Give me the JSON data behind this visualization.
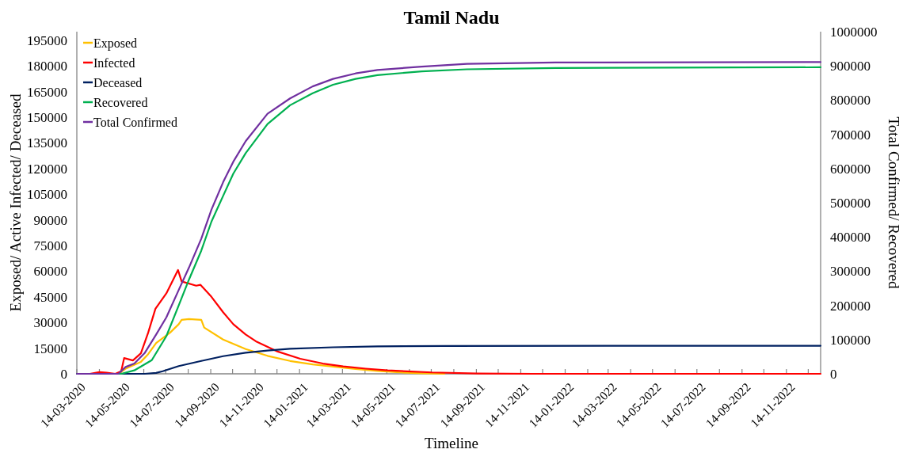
{
  "chart_data": {
    "type": "line",
    "title": "Tamil Nadu",
    "xlabel": "Timeline",
    "ylabel": "Exposed/ Active Infected/ Deceased",
    "y2label": "Total Confirmed/ Recovered",
    "xlim": [
      "2020-03-14",
      "2022-12-31"
    ],
    "xticks": [
      {
        "value": "2020-03-14",
        "label": "14-03-2020"
      },
      {
        "value": "2020-04-14",
        "label": null
      },
      {
        "value": "2020-05-14",
        "label": "14-05-2020"
      },
      {
        "value": "2020-06-14",
        "label": null
      },
      {
        "value": "2020-07-14",
        "label": "14-07-2020"
      },
      {
        "value": "2020-08-14",
        "label": null
      },
      {
        "value": "2020-09-14",
        "label": "14-09-2020"
      },
      {
        "value": "2020-10-14",
        "label": null
      },
      {
        "value": "2020-11-14",
        "label": "14-11-2020"
      },
      {
        "value": "2020-12-14",
        "label": null
      },
      {
        "value": "2021-01-14",
        "label": "14-01-2021"
      },
      {
        "value": "2021-02-14",
        "label": null
      },
      {
        "value": "2021-03-14",
        "label": "14-03-2021"
      },
      {
        "value": "2021-04-14",
        "label": null
      },
      {
        "value": "2021-05-14",
        "label": "14-05-2021"
      },
      {
        "value": "2021-06-14",
        "label": null
      },
      {
        "value": "2021-07-14",
        "label": "14-07-2021"
      },
      {
        "value": "2021-08-14",
        "label": null
      },
      {
        "value": "2021-09-14",
        "label": "14-09-2021"
      },
      {
        "value": "2021-10-14",
        "label": null
      },
      {
        "value": "2021-11-14",
        "label": "14-11-2021"
      },
      {
        "value": "2021-12-14",
        "label": null
      },
      {
        "value": "2022-01-14",
        "label": "14-01-2022"
      },
      {
        "value": "2022-02-14",
        "label": null
      },
      {
        "value": "2022-03-14",
        "label": "14-03-2022"
      },
      {
        "value": "2022-04-14",
        "label": null
      },
      {
        "value": "2022-05-14",
        "label": "14-05-2022"
      },
      {
        "value": "2022-06-14",
        "label": null
      },
      {
        "value": "2022-07-14",
        "label": "14-07-2022"
      },
      {
        "value": "2022-08-14",
        "label": null
      },
      {
        "value": "2022-09-14",
        "label": "14-09-2022"
      },
      {
        "value": "2022-10-14",
        "label": null
      },
      {
        "value": "2022-11-14",
        "label": "14-11-2022"
      },
      {
        "value": "2022-12-14",
        "label": null
      }
    ],
    "ylim": [
      0,
      200000
    ],
    "yticks": [
      0,
      15000,
      30000,
      45000,
      60000,
      75000,
      90000,
      105000,
      120000,
      135000,
      150000,
      165000,
      180000,
      195000
    ],
    "y2lim": [
      0,
      1000000
    ],
    "y2ticks": [
      0,
      100000,
      200000,
      300000,
      400000,
      500000,
      600000,
      700000,
      800000,
      900000,
      1000000
    ],
    "legend": "top left",
    "grid": false,
    "marker": "none",
    "series": [
      {
        "name": "Exposed",
        "color": "#ffc000",
        "x": [
          "2020-03-14",
          "2020-05-10",
          "2020-05-20",
          "2020-06-10",
          "2020-06-20",
          "2020-07-01",
          "2020-07-20",
          "2020-08-01",
          "2020-08-05",
          "2020-08-15",
          "2020-09-01",
          "2020-09-05",
          "2020-10-01",
          "2020-11-01",
          "2020-12-01",
          "2021-01-01",
          "2021-02-01",
          "2021-03-01",
          "2021-04-01",
          "2021-05-01",
          "2021-06-01",
          "2021-07-01",
          "2021-08-01"
        ],
        "values": [
          0,
          0,
          3000,
          7000,
          11500,
          18000,
          24000,
          29000,
          31500,
          32000,
          31500,
          27000,
          20000,
          14500,
          10500,
          7500,
          5500,
          4200,
          2800,
          1700,
          800,
          300,
          0
        ]
      },
      {
        "name": "Infected",
        "color": "#ff0000",
        "x": [
          "2020-03-14",
          "2020-04-01",
          "2020-04-14",
          "2020-04-24",
          "2020-05-06",
          "2020-05-14",
          "2020-05-18",
          "2020-05-30",
          "2020-06-10",
          "2020-06-20",
          "2020-06-30",
          "2020-07-15",
          "2020-07-31",
          "2020-08-05",
          "2020-08-25",
          "2020-08-31",
          "2020-09-15",
          "2020-10-01",
          "2020-10-15",
          "2020-11-01",
          "2020-11-15",
          "2020-12-15",
          "2021-01-15",
          "2021-02-15",
          "2021-03-15",
          "2021-04-15",
          "2021-05-15",
          "2021-07-15",
          "2021-09-15",
          "2021-12-01",
          "2022-12-31"
        ],
        "values": [
          0,
          0,
          1000,
          600,
          0,
          1500,
          9200,
          7800,
          12000,
          24000,
          38000,
          47000,
          60700,
          54000,
          51500,
          52000,
          45000,
          36000,
          29000,
          23000,
          19000,
          13000,
          8800,
          6000,
          4300,
          3000,
          2000,
          800,
          200,
          0,
          0
        ]
      },
      {
        "name": "Deceased",
        "color": "#002060",
        "x": [
          "2020-03-14",
          "2020-06-15",
          "2020-07-01",
          "2020-07-10",
          "2020-08-01",
          "2020-09-01",
          "2020-10-01",
          "2020-11-01",
          "2020-12-01",
          "2021-01-01",
          "2021-03-01",
          "2021-05-01",
          "2021-08-01",
          "2022-12-31"
        ],
        "values": [
          0,
          0,
          500,
          1500,
          4500,
          7500,
          10300,
          12300,
          13600,
          14600,
          15500,
          16000,
          16300,
          16400
        ]
      },
      {
        "name": "Recovered",
        "color": "#00b050",
        "axis": "y2",
        "x": [
          "2020-03-14",
          "2020-05-14",
          "2020-06-01",
          "2020-06-25",
          "2020-07-15",
          "2020-08-01",
          "2020-08-15",
          "2020-09-01",
          "2020-09-15",
          "2020-10-01",
          "2020-10-15",
          "2020-11-01",
          "2020-12-01",
          "2021-01-01",
          "2021-02-01",
          "2021-03-01",
          "2021-04-01",
          "2021-05-01",
          "2021-07-01",
          "2021-09-01",
          "2022-01-01",
          "2022-12-31"
        ],
        "values": [
          0,
          0,
          10000,
          40000,
          110000,
          200000,
          275000,
          360000,
          445000,
          520000,
          585000,
          645000,
          730000,
          785000,
          820000,
          845000,
          862000,
          873000,
          884000,
          890000,
          894000,
          896000
        ]
      },
      {
        "name": "Total Confirmed",
        "color": "#7030a0",
        "axis": "y2",
        "x": [
          "2020-03-14",
          "2020-05-10",
          "2020-05-20",
          "2020-06-01",
          "2020-06-15",
          "2020-07-01",
          "2020-07-15",
          "2020-08-01",
          "2020-08-15",
          "2020-09-01",
          "2020-09-15",
          "2020-10-01",
          "2020-10-15",
          "2020-11-01",
          "2020-12-01",
          "2021-01-01",
          "2021-02-01",
          "2021-03-01",
          "2021-04-01",
          "2021-05-01",
          "2021-07-01",
          "2021-09-01",
          "2022-01-01",
          "2022-12-31"
        ],
        "values": [
          0,
          0,
          20000,
          30000,
          60000,
          115000,
          165000,
          245000,
          310000,
          395000,
          480000,
          560000,
          620000,
          680000,
          760000,
          805000,
          840000,
          862000,
          878000,
          888000,
          898000,
          906000,
          910000,
          911000
        ]
      }
    ]
  }
}
